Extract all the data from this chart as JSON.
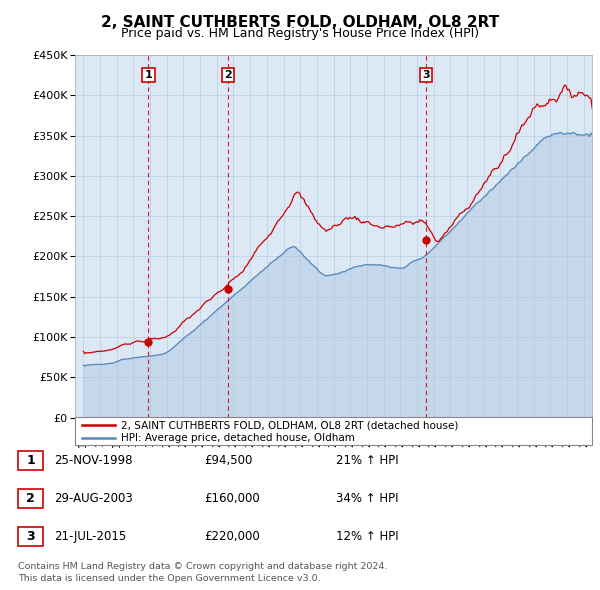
{
  "title": "2, SAINT CUTHBERTS FOLD, OLDHAM, OL8 2RT",
  "subtitle": "Price paid vs. HM Land Registry's House Price Index (HPI)",
  "title_fontsize": 11,
  "subtitle_fontsize": 9,
  "purchases": [
    {
      "date": 1998.9,
      "price": 94500,
      "label": "1"
    },
    {
      "date": 2003.66,
      "price": 160000,
      "label": "2"
    },
    {
      "date": 2015.55,
      "price": 220000,
      "label": "3"
    }
  ],
  "vline_dates": [
    1998.9,
    2003.66,
    2015.55
  ],
  "ylim": [
    0,
    450000
  ],
  "yticks": [
    0,
    50000,
    100000,
    150000,
    200000,
    250000,
    300000,
    350000,
    400000,
    450000
  ],
  "xlim": [
    1994.5,
    2025.5
  ],
  "background_color": "#ffffff",
  "chart_bg_color": "#dce9f5",
  "grid_color": "#b8cfe8",
  "red_line_color": "#cc0000",
  "blue_line_color": "#5588bb",
  "blue_fill_color": "#aac4e0",
  "table_entries": [
    {
      "num": "1",
      "date": "25-NOV-1998",
      "price": "£94,500",
      "hpi": "21% ↑ HPI"
    },
    {
      "num": "2",
      "date": "29-AUG-2003",
      "price": "£160,000",
      "hpi": "34% ↑ HPI"
    },
    {
      "num": "3",
      "date": "21-JUL-2015",
      "price": "£220,000",
      "hpi": "12% ↑ HPI"
    }
  ],
  "legend_line1": "2, SAINT CUTHBERTS FOLD, OLDHAM, OL8 2RT (detached house)",
  "legend_line2": "HPI: Average price, detached house, Oldham",
  "footnote": "Contains HM Land Registry data © Crown copyright and database right 2024.\nThis data is licensed under the Open Government Licence v3.0."
}
